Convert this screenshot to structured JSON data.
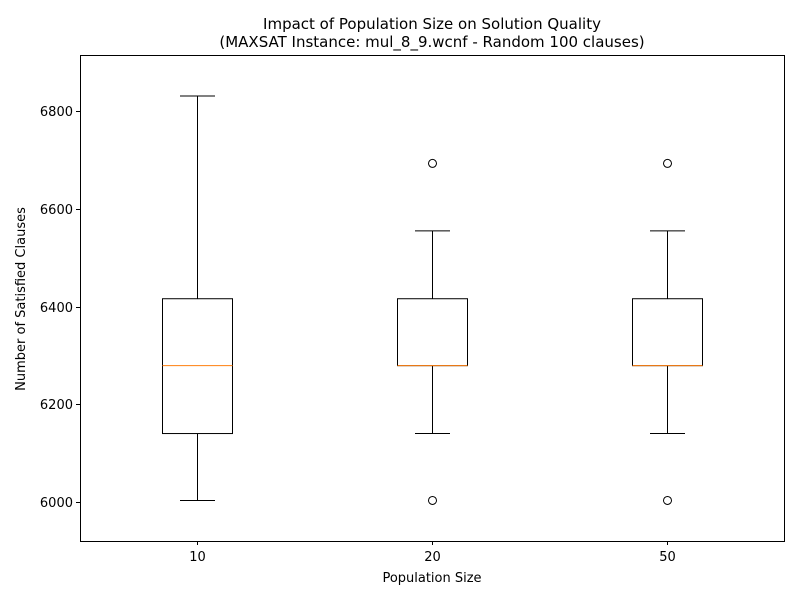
{
  "chart_data": {
    "type": "box",
    "title": "Impact of Population Size on Solution Quality",
    "subtitle": "(MAXSAT Instance: mul_8_9.wcnf - Random 100 clauses)",
    "xlabel": "Population Size",
    "ylabel": "Number of Satisfied Clauses",
    "categories": [
      "10",
      "20",
      "50"
    ],
    "ylim": [
      5920,
      6915
    ],
    "yticks": [
      6000,
      6200,
      6400,
      6600,
      6800
    ],
    "grid": false,
    "series": [
      {
        "category": "10",
        "whisker_low": 6003,
        "q1": 6140,
        "median": 6279,
        "q3": 6416,
        "whisker_high": 6831,
        "outliers": []
      },
      {
        "category": "20",
        "whisker_low": 6140,
        "q1": 6279,
        "median": 6279,
        "q3": 6416,
        "whisker_high": 6555,
        "outliers": [
          6003,
          6693
        ]
      },
      {
        "category": "50",
        "whisker_low": 6140,
        "q1": 6279,
        "median": 6279,
        "q3": 6416,
        "whisker_high": 6555,
        "outliers": [
          6003,
          6693
        ]
      }
    ],
    "colors": {
      "box": "#000000",
      "median": "#ff7f0e",
      "outlier": "#000000"
    }
  }
}
